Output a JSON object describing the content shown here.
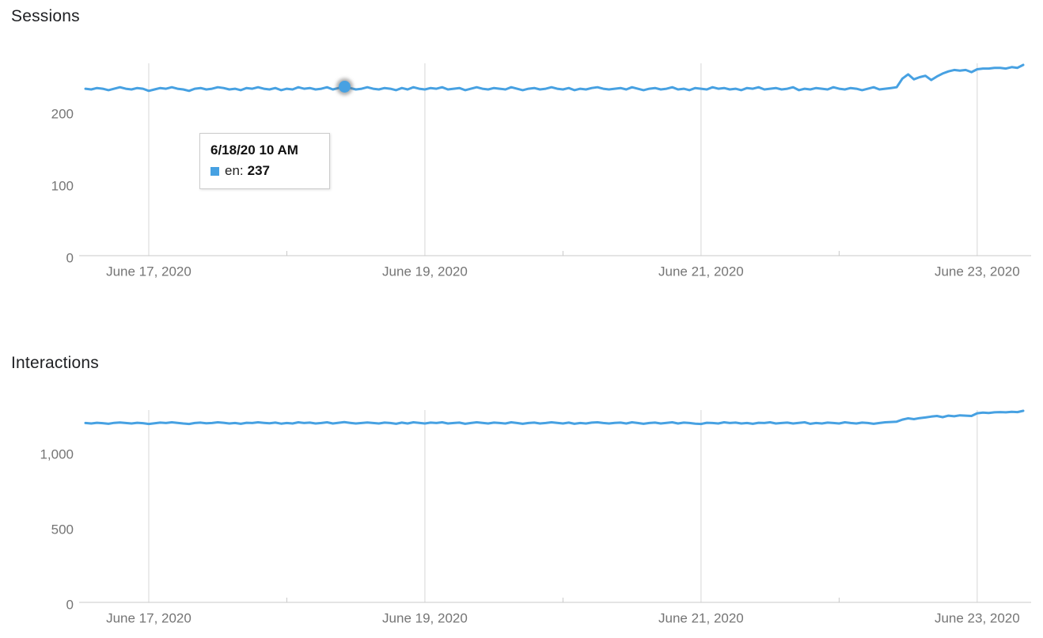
{
  "colors": {
    "line": "#47a1e2",
    "grid": "#d6d6d6",
    "axis": "#c9c9c9",
    "tick_label": "#757575",
    "title": "#1f2023",
    "tooltip_border": "#cccccc"
  },
  "chart_data": [
    {
      "type": "line",
      "title": "Sessions",
      "x_start": "6/16/20 1 PM",
      "x_interval": "hourly",
      "grid": "vertical-day-gridlines-only",
      "legend_position": "none",
      "ylim": [
        0,
        270
      ],
      "y_ticks": [
        {
          "value": 0,
          "label": "0"
        },
        {
          "value": 100,
          "label": "100"
        },
        {
          "value": 200,
          "label": "200"
        }
      ],
      "x_major_ticks": [
        {
          "hour_index": 11,
          "label": "June 17, 2020"
        },
        {
          "hour_index": 59,
          "label": "June 19, 2020"
        },
        {
          "hour_index": 107,
          "label": "June 21, 2020"
        },
        {
          "hour_index": 155,
          "label": "June 23, 2020"
        }
      ],
      "x_minor_ticks": [
        35,
        83,
        131
      ],
      "series": [
        {
          "name": "en",
          "color": "#47a1e2",
          "values": [
            234,
            233,
            235,
            234,
            232,
            234,
            236,
            234,
            233,
            235,
            234,
            231,
            233,
            235,
            234,
            236,
            234,
            233,
            231,
            234,
            235,
            233,
            234,
            236,
            235,
            233,
            234,
            232,
            235,
            234,
            236,
            234,
            233,
            235,
            232,
            234,
            233,
            236,
            234,
            235,
            233,
            234,
            236,
            233,
            235,
            237,
            235,
            233,
            234,
            236,
            234,
            233,
            235,
            234,
            232,
            235,
            233,
            236,
            234,
            233,
            235,
            234,
            236,
            233,
            234,
            235,
            232,
            234,
            236,
            234,
            233,
            235,
            234,
            233,
            236,
            234,
            232,
            234,
            235,
            233,
            234,
            236,
            234,
            233,
            235,
            232,
            234,
            233,
            235,
            236,
            234,
            233,
            234,
            235,
            233,
            236,
            234,
            232,
            234,
            235,
            233,
            234,
            236,
            233,
            234,
            232,
            235,
            234,
            233,
            236,
            234,
            235,
            233,
            234,
            232,
            235,
            234,
            236,
            233,
            234,
            235,
            233,
            234,
            236,
            232,
            234,
            233,
            235,
            234,
            233,
            236,
            234,
            233,
            235,
            234,
            232,
            234,
            236,
            233,
            234,
            235,
            236,
            248,
            254,
            247,
            250,
            252,
            246,
            251,
            255,
            258,
            260,
            259,
            260,
            257,
            261,
            262,
            262,
            263,
            263,
            262,
            264,
            263,
            267
          ]
        }
      ],
      "hover_point": {
        "hour_index": 45,
        "value": 237
      },
      "tooltip": {
        "title": "6/18/20 10 AM",
        "series_label": "en:",
        "value": "237"
      }
    },
    {
      "type": "line",
      "title": "Interactions",
      "x_start": "6/16/20 1 PM",
      "x_interval": "hourly",
      "grid": "vertical-day-gridlines-only",
      "legend_position": "none",
      "ylim": [
        0,
        1340
      ],
      "y_ticks": [
        {
          "value": 0,
          "label": "0"
        },
        {
          "value": 500,
          "label": "500"
        },
        {
          "value": 1000,
          "label": "1,000"
        }
      ],
      "x_major_ticks": [
        {
          "hour_index": 11,
          "label": "June 17, 2020"
        },
        {
          "hour_index": 59,
          "label": "June 19, 2020"
        },
        {
          "hour_index": 107,
          "label": "June 21, 2020"
        },
        {
          "hour_index": 155,
          "label": "June 23, 2020"
        }
      ],
      "x_minor_ticks": [
        35,
        83,
        131
      ],
      "series": [
        {
          "color": "#47a1e2",
          "values": [
            1203,
            1200,
            1205,
            1202,
            1198,
            1204,
            1207,
            1203,
            1200,
            1205,
            1202,
            1197,
            1201,
            1206,
            1203,
            1208,
            1204,
            1200,
            1197,
            1203,
            1206,
            1201,
            1203,
            1208,
            1205,
            1200,
            1203,
            1198,
            1205,
            1203,
            1208,
            1204,
            1201,
            1206,
            1199,
            1203,
            1200,
            1208,
            1203,
            1206,
            1200,
            1203,
            1208,
            1200,
            1205,
            1209,
            1204,
            1200,
            1203,
            1207,
            1203,
            1200,
            1206,
            1203,
            1198,
            1206,
            1200,
            1208,
            1204,
            1200,
            1206,
            1203,
            1208,
            1200,
            1203,
            1206,
            1198,
            1203,
            1208,
            1204,
            1200,
            1206,
            1203,
            1200,
            1208,
            1203,
            1198,
            1203,
            1206,
            1200,
            1203,
            1208,
            1204,
            1200,
            1206,
            1198,
            1203,
            1200,
            1206,
            1208,
            1203,
            1200,
            1204,
            1206,
            1200,
            1208,
            1203,
            1198,
            1203,
            1206,
            1200,
            1204,
            1208,
            1200,
            1206,
            1203,
            1199,
            1197,
            1205,
            1203,
            1200,
            1208,
            1203,
            1206,
            1200,
            1203,
            1198,
            1205,
            1203,
            1208,
            1200,
            1203,
            1206,
            1200,
            1204,
            1208,
            1198,
            1203,
            1200,
            1206,
            1203,
            1200,
            1208,
            1203,
            1200,
            1206,
            1203,
            1198,
            1203,
            1208,
            1210,
            1212,
            1226,
            1234,
            1229,
            1236,
            1240,
            1246,
            1250,
            1242,
            1252,
            1248,
            1254,
            1252,
            1250,
            1268,
            1272,
            1270,
            1274,
            1276,
            1274,
            1278,
            1276,
            1284
          ]
        }
      ]
    }
  ]
}
